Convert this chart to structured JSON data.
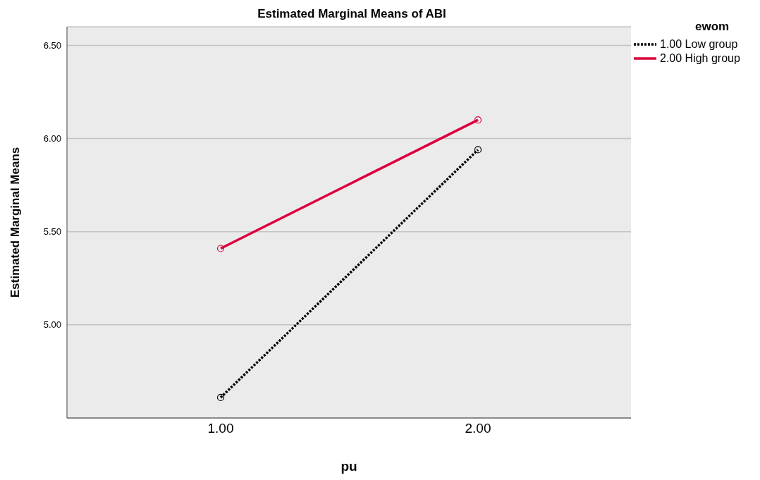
{
  "chart_data": {
    "type": "line",
    "title": "Estimated Marginal Means of ABI",
    "xlabel": "pu",
    "ylabel": "Estimated Marginal Means",
    "legend_title": "ewom",
    "categories": [
      "1.00",
      "2.00"
    ],
    "series": [
      {
        "name": "1.00 Low group",
        "color": "#000000",
        "values": [
          4.61,
          5.94
        ],
        "line_style": "dotted"
      },
      {
        "name": "2.00 High group",
        "color": "#d9003a",
        "values": [
          5.41,
          6.1
        ],
        "line_style": "solid"
      }
    ],
    "ylim": [
      4.5,
      6.6
    ],
    "yticks": [
      {
        "value": 5,
        "label": "5.00"
      },
      {
        "value": 5.5,
        "label": "5.50"
      },
      {
        "value": 6,
        "label": "6.00"
      },
      {
        "value": 6.5,
        "label": "6.50"
      }
    ],
    "grid": "y",
    "legend": "top right",
    "marker": "circle"
  }
}
